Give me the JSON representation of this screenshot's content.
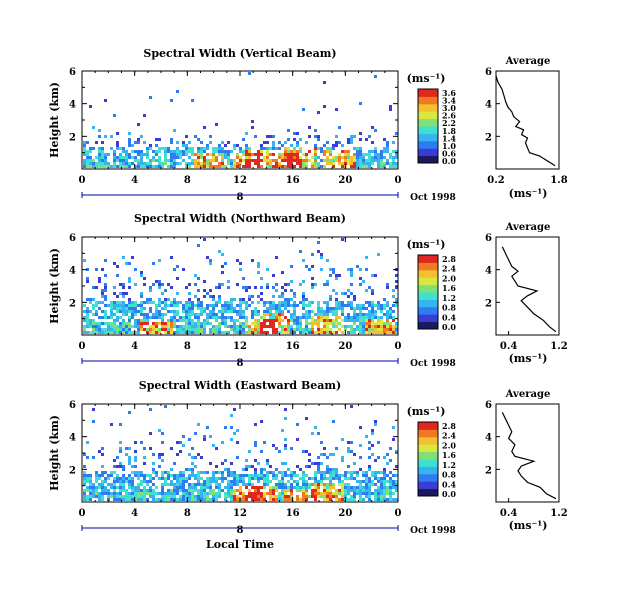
{
  "chart_data": [
    {
      "type": "heatmap",
      "title": "Spectral Width (Vertical Beam)",
      "ylabel": "Height (km)",
      "xlabel": "",
      "x_ticks": [
        "0",
        "4",
        "8",
        "12",
        "16",
        "20",
        "0"
      ],
      "xlim": [
        0,
        24
      ],
      "y_ticks": [
        "2",
        "4",
        "6"
      ],
      "ylim": [
        0,
        6
      ],
      "date_day": "8",
      "date_label": "Oct 1998",
      "colorbar": {
        "unit": "(ms⁻¹)",
        "ticks": [
          "3.6",
          "3.4",
          "3.0",
          "2.6",
          "2.2",
          "1.8",
          "1.4",
          "1.0",
          "0.6",
          "0.2"
        ],
        "ticks_display": [
          "3.6",
          "3.4",
          "3.0",
          "2.6",
          "2.2",
          "1.8",
          "1.4",
          "1.0",
          "0.6",
          "0.0"
        ],
        "range": [
          0,
          3.6
        ]
      },
      "scatter_top": 3.0,
      "band_top": 1.4,
      "hot_cells": [
        [
          12.5,
          0.5
        ],
        [
          13.5,
          0.8
        ],
        [
          15.5,
          0.6
        ],
        [
          16.5,
          1.0
        ],
        [
          9.5,
          0.6
        ],
        [
          19.5,
          0.7
        ]
      ],
      "average": {
        "title": "Average",
        "xlabel": "(ms⁻¹)",
        "x_ticks": [
          "0.2",
          "1.8"
        ],
        "xlim": [
          0.2,
          1.8
        ],
        "y_ticks": [
          "2",
          "4",
          "6"
        ],
        "ylim": [
          0,
          6
        ],
        "heights": [
          0.2,
          0.5,
          0.8,
          1.0,
          1.3,
          1.6,
          1.9,
          2.1,
          2.4,
          2.6,
          2.9,
          3.2,
          3.5,
          3.8,
          4.1,
          4.5,
          4.9,
          5.3,
          5.7
        ],
        "values": [
          1.7,
          1.5,
          1.3,
          1.05,
          1.0,
          0.95,
          1.0,
          0.85,
          0.9,
          0.7,
          0.8,
          0.65,
          0.6,
          0.5,
          0.45,
          0.4,
          0.35,
          0.25,
          0.2
        ]
      }
    },
    {
      "type": "heatmap",
      "title": "Spectral Width (Northward Beam)",
      "ylabel": "Height (km)",
      "xlabel": "",
      "x_ticks": [
        "0",
        "4",
        "8",
        "12",
        "16",
        "20",
        "0"
      ],
      "xlim": [
        0,
        24
      ],
      "y_ticks": [
        "2",
        "4",
        "6"
      ],
      "ylim": [
        0,
        6
      ],
      "date_day": "8",
      "date_label": "Oct 1998",
      "colorbar": {
        "unit": "(ms⁻¹)",
        "ticks": [
          "2.8",
          "2.4",
          "2.0",
          "1.6",
          "1.2",
          "0.8",
          "0.4",
          "0.0"
        ],
        "range": [
          0,
          2.8
        ]
      },
      "scatter_top": 5.5,
      "band_top": 2.2,
      "hot_cells": [
        [
          5.5,
          0.4
        ],
        [
          13.5,
          0.6
        ],
        [
          14.5,
          0.9
        ],
        [
          18.5,
          0.8
        ],
        [
          22.5,
          0.6
        ]
      ],
      "average": {
        "title": "Average",
        "xlabel": "(ms⁻¹)",
        "x_ticks": [
          "0.4",
          "1.2"
        ],
        "xlim": [
          0.2,
          1.2
        ],
        "y_ticks": [
          "2",
          "4",
          "6"
        ],
        "ylim": [
          0,
          6
        ],
        "heights": [
          0.2,
          0.5,
          0.9,
          1.3,
          1.7,
          2.1,
          2.4,
          2.7,
          3.0,
          3.3,
          3.6,
          3.9,
          4.2,
          4.6,
          5.0,
          5.4
        ],
        "values": [
          1.15,
          1.05,
          0.95,
          0.8,
          0.7,
          0.6,
          0.7,
          0.85,
          0.55,
          0.5,
          0.45,
          0.55,
          0.45,
          0.4,
          0.35,
          0.3
        ]
      }
    },
    {
      "type": "heatmap",
      "title": "Spectral Width (Eastward Beam)",
      "ylabel": "Height (km)",
      "xlabel": "Local Time",
      "x_ticks": [
        "0",
        "4",
        "8",
        "12",
        "16",
        "20",
        "0"
      ],
      "xlim": [
        0,
        24
      ],
      "y_ticks": [
        "2",
        "4",
        "6"
      ],
      "ylim": [
        0,
        6
      ],
      "date_day": "8",
      "date_label": "Oct 1998",
      "colorbar": {
        "unit": "(ms⁻¹)",
        "ticks": [
          "2.8",
          "2.4",
          "2.0",
          "1.6",
          "1.2",
          "0.8",
          "0.4",
          "0.0"
        ],
        "range": [
          0,
          2.8
        ]
      },
      "scatter_top": 5.5,
      "band_top": 2.0,
      "hot_cells": [
        [
          12.5,
          0.5
        ],
        [
          13.5,
          0.6
        ],
        [
          16.5,
          0.4
        ],
        [
          18.5,
          0.7
        ]
      ],
      "average": {
        "title": "Average",
        "xlabel": "(ms⁻¹)",
        "x_ticks": [
          "0.4",
          "1.2"
        ],
        "xlim": [
          0.2,
          1.2
        ],
        "y_ticks": [
          "2",
          "4",
          "6"
        ],
        "ylim": [
          0,
          6
        ],
        "heights": [
          0.2,
          0.5,
          0.9,
          1.2,
          1.6,
          1.9,
          2.2,
          2.5,
          2.8,
          3.1,
          3.5,
          3.9,
          4.3,
          4.7,
          5.1,
          5.5
        ],
        "values": [
          1.15,
          1.0,
          0.9,
          0.7,
          0.6,
          0.55,
          0.6,
          0.8,
          0.5,
          0.45,
          0.5,
          0.4,
          0.45,
          0.4,
          0.35,
          0.3
        ]
      }
    }
  ],
  "colors": {
    "scale": [
      "#1a1a5a",
      "#3b3bd6",
      "#2f7cf2",
      "#35b4f0",
      "#3fe0d0",
      "#7fe07a",
      "#d8e840",
      "#f5c030",
      "#f07a20",
      "#e02820"
    ]
  }
}
